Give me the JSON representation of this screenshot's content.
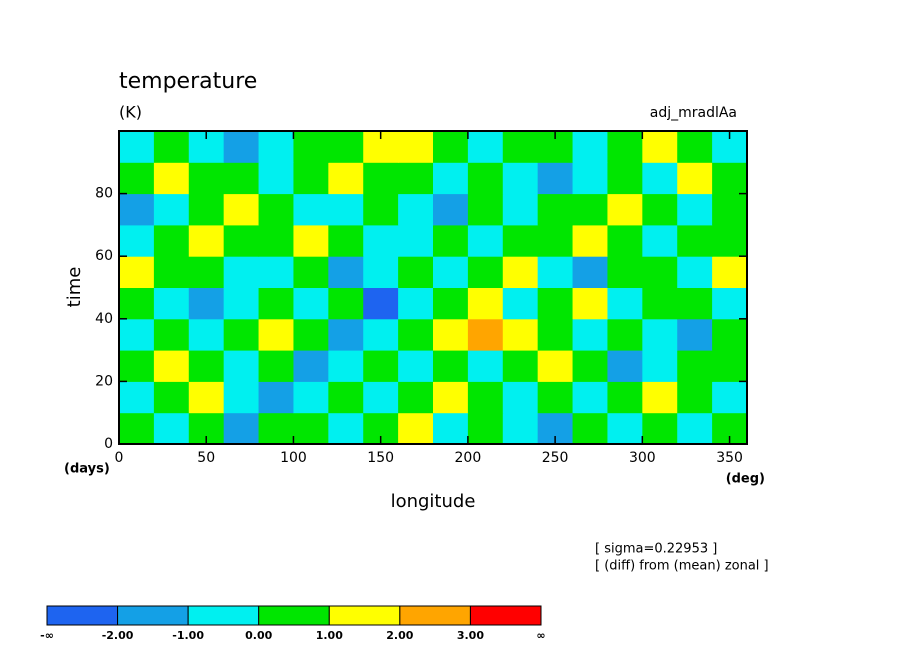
{
  "chart_data": {
    "type": "heatmap",
    "title": "temperature",
    "subtitle": "(K)",
    "annotation": "adj_mradlAa",
    "x_label": "longitude",
    "x_unit": "(deg)",
    "y_label": "time",
    "y_unit": "(days)",
    "notes": [
      "[ sigma=0.22953 ]",
      "[ (diff) from (mean) zonal ]"
    ],
    "xlim": [
      0,
      360
    ],
    "xticks": [
      0,
      50,
      100,
      150,
      200,
      250,
      300,
      350
    ],
    "ylim": [
      0,
      100
    ],
    "yticks": [
      0,
      20,
      40,
      60,
      80
    ],
    "x": [
      10,
      30,
      50,
      70,
      90,
      110,
      130,
      150,
      170,
      190,
      210,
      230,
      250,
      270,
      290,
      310,
      330,
      350
    ],
    "y": [
      5,
      15,
      25,
      35,
      45,
      55,
      65,
      75,
      85,
      95
    ],
    "values": [
      [
        0.5,
        -0.5,
        0.5,
        -1.5,
        0.5,
        0.5,
        -0.5,
        0.5,
        1.5,
        -0.5,
        0.5,
        -0.5,
        -1.5,
        0.5,
        -0.5,
        0.5,
        -0.5,
        0.5
      ],
      [
        -0.5,
        0.5,
        1.5,
        -0.5,
        -1.5,
        -0.5,
        0.5,
        -0.5,
        0.5,
        1.5,
        0.5,
        -0.5,
        0.5,
        -0.5,
        0.5,
        1.5,
        0.5,
        -0.5
      ],
      [
        0.5,
        1.5,
        0.5,
        -0.5,
        0.5,
        -1.5,
        -0.5,
        0.5,
        -0.5,
        0.5,
        -0.5,
        0.5,
        1.5,
        0.5,
        -1.5,
        -0.5,
        0.5,
        0.5
      ],
      [
        -0.5,
        0.5,
        -0.5,
        0.5,
        1.5,
        0.5,
        -1.5,
        -0.5,
        0.5,
        1.5,
        2.5,
        1.5,
        0.5,
        -0.5,
        0.5,
        -0.5,
        -1.5,
        0.5
      ],
      [
        0.5,
        -0.5,
        -1.5,
        -0.5,
        0.5,
        -0.5,
        0.5,
        -2.5,
        -0.5,
        0.5,
        1.5,
        -0.5,
        0.5,
        1.5,
        -0.5,
        0.5,
        0.5,
        -0.5
      ],
      [
        1.5,
        0.5,
        0.5,
        -0.5,
        -0.5,
        0.5,
        -1.5,
        -0.5,
        0.5,
        -0.5,
        0.5,
        1.5,
        -0.5,
        -1.5,
        0.5,
        0.5,
        -0.5,
        1.5
      ],
      [
        -0.5,
        0.5,
        1.5,
        0.5,
        0.5,
        1.5,
        0.5,
        -0.5,
        -0.5,
        0.5,
        -0.5,
        0.5,
        0.5,
        1.5,
        0.5,
        -0.5,
        0.5,
        0.5
      ],
      [
        -1.5,
        -0.5,
        0.5,
        1.5,
        0.5,
        -0.5,
        -0.5,
        0.5,
        -0.5,
        -1.5,
        0.5,
        -0.5,
        0.5,
        0.5,
        1.5,
        0.5,
        -0.5,
        0.5
      ],
      [
        0.5,
        1.5,
        0.5,
        0.5,
        -0.5,
        0.5,
        1.5,
        0.5,
        0.5,
        -0.5,
        0.5,
        -0.5,
        -1.5,
        -0.5,
        0.5,
        -0.5,
        1.5,
        0.5
      ],
      [
        -0.5,
        0.5,
        -0.5,
        -1.5,
        -0.5,
        0.5,
        0.5,
        1.5,
        1.5,
        0.5,
        -0.5,
        0.5,
        0.5,
        -0.5,
        0.5,
        1.5,
        0.5,
        -0.5
      ]
    ],
    "colorbar": {
      "colors": [
        "#1e64f0",
        "#14a0e6",
        "#00f0f0",
        "#00e600",
        "#ffff00",
        "#ffa500",
        "#ff0000"
      ],
      "ticks": [
        {
          "label": "-∞"
        },
        {
          "value": -2,
          "label": "-2.00"
        },
        {
          "value": -1,
          "label": "-1.00"
        },
        {
          "value": 0,
          "label": "0.00"
        },
        {
          "value": 1,
          "label": "1.00"
        },
        {
          "value": 2,
          "label": "2.00"
        },
        {
          "value": 3,
          "label": "3.00"
        },
        {
          "label": "∞"
        }
      ]
    }
  }
}
